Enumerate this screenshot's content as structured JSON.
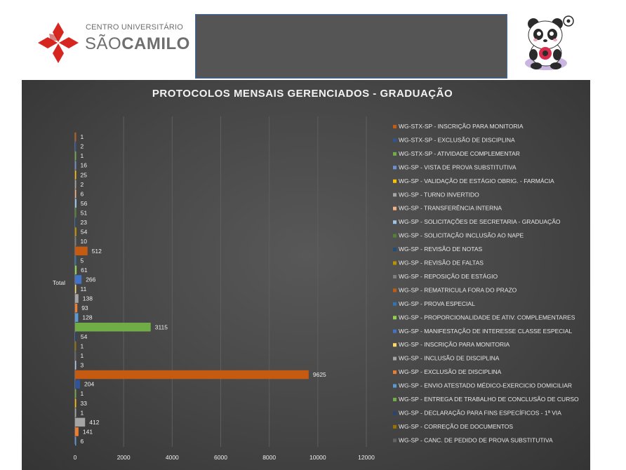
{
  "header": {
    "logo_line1": "CENTRO UNIVERSITÁRIO",
    "logo_line2_light": "SÃO",
    "logo_line2_bold": "CAMILO"
  },
  "colors": {
    "chart_background": "#464646",
    "logo_red": "#d7261f",
    "header_box": "#555555"
  },
  "chart_data": {
    "type": "bar",
    "orientation": "horizontal",
    "title": "PROTOCOLOS MENSAIS GERENCIADOS - GRADUAÇÃO",
    "category_label": "Total",
    "xlim": [
      0,
      12000
    ],
    "x_ticks": [
      "0",
      "2000",
      "4000",
      "6000",
      "8000",
      "10000",
      "12000"
    ],
    "grid": true,
    "legend_position": "right",
    "series": [
      {
        "name": "WG-STX-SP - INSCRIÇÃO PARA MONITORIA",
        "value": 1,
        "color": "#c55a11"
      },
      {
        "name": "WG-STX-SP - EXCLUSÃO DE DISCIPLINA",
        "value": 2,
        "color": "#2f5597"
      },
      {
        "name": "WG-STX-SP - ATIVIDADE COMPLEMENTAR",
        "value": 1,
        "color": "#70ad47"
      },
      {
        "name": "WG-SP - VISTA DE PROVA SUBSTITUTIVA",
        "value": 16,
        "color": "#6f8fd8"
      },
      {
        "name": "WG-SP - VALIDAÇÃO DE ESTÁGIO OBRIG. - FARMÁCIA",
        "value": 25,
        "color": "#ffc000"
      },
      {
        "name": "WG-SP - TURNO INVERTIDO",
        "value": 2,
        "color": "#a5a5a5"
      },
      {
        "name": "WG-SP - TRANSFERÊNCIA INTERNA",
        "value": 6,
        "color": "#f4b183"
      },
      {
        "name": "WG-SP - SOLICITAÇÕES DE SECRETARIA - GRADUAÇÃO",
        "value": 56,
        "color": "#9dc3e6"
      },
      {
        "name": "WG-SP - SOLICITAÇÃO INCLUSÃO AO NAPE",
        "value": 51,
        "color": "#548235"
      },
      {
        "name": "WG-SP - REVISÃO DE NOTAS",
        "value": 23,
        "color": "#1f4e79"
      },
      {
        "name": "WG-SP - REVISÃO DE FALTAS",
        "value": 54,
        "color": "#bf9000"
      },
      {
        "name": "WG-SP - REPOSIÇÃO DE ESTÁGIO",
        "value": 10,
        "color": "#7f7f7f"
      },
      {
        "name": "WG-SP - REMATRICULA FORA DO PRAZO",
        "value": 512,
        "color": "#c55a11"
      },
      {
        "name": "WG-SP - PROVA ESPECIAL",
        "value": 5,
        "color": "#2e75b6"
      },
      {
        "name": "WG-SP - PROPORCIONALIDADE DE ATIV. COMPLEMENTARES",
        "value": 61,
        "color": "#92d050"
      },
      {
        "name": "WG-SP - MANIFESTAÇÃO DE INTERESSE CLASSE ESPECIAL",
        "value": 266,
        "color": "#4472c4"
      },
      {
        "name": "WG-SP - INSCRIÇÃO PARA MONITORIA",
        "value": 11,
        "color": "#ffd966"
      },
      {
        "name": "WG-SP - INCLUSÃO DE DISCIPLINA",
        "value": 138,
        "color": "#a5a5a5"
      },
      {
        "name": "WG-SP - EXCLUSÃO DE DISCIPLINA",
        "value": 93,
        "color": "#ed7d31"
      },
      {
        "name": "WG-SP - ENVIO ATESTADO MÉDICO-EXERCICIO DOMICILIAR",
        "value": 128,
        "color": "#5b9bd5"
      },
      {
        "name": "WG-SP - ENTREGA DE TRABALHO DE CONCLUSÃO DE CURSO",
        "value": 3115,
        "color": "#70ad47"
      },
      {
        "name": "WG-SP - DECLARAÇÃO PARA FINS ESPECÍFICOS - 1ª VIA",
        "value": 54,
        "color": "#264478"
      },
      {
        "name": "WG-SP - CORREÇÃO DE DOCUMENTOS",
        "value": 1,
        "color": "#997300"
      },
      {
        "name": "WG-SP - CANC. DE PEDIDO DE PROVA SUBSTITUTIVA",
        "value": 1,
        "color": "#636363"
      },
      {
        "name": "",
        "value": 3,
        "color": "#b4c7e7"
      },
      {
        "name": "",
        "value": 9625,
        "color": "#c55a11"
      },
      {
        "name": "",
        "value": 204,
        "color": "#2f5597"
      },
      {
        "name": "",
        "value": 1,
        "color": "#70ad47"
      },
      {
        "name": "",
        "value": 33,
        "color": "#ffc000"
      },
      {
        "name": "",
        "value": 1,
        "color": "#a5a5a5"
      },
      {
        "name": "",
        "value": 412,
        "color": "#a5a5a5"
      },
      {
        "name": "",
        "value": 141,
        "color": "#ed7d31"
      },
      {
        "name": "",
        "value": 6,
        "color": "#5b9bd5"
      }
    ]
  }
}
